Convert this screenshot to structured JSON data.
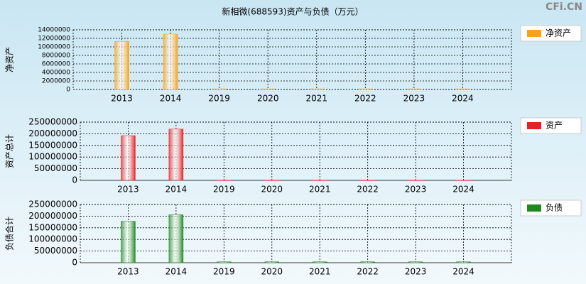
{
  "title": "新相微(688593)资产与负债（万元）",
  "watermark": "CFi.CN",
  "chart_data": [
    {
      "type": "bar",
      "ylabel": "净资产",
      "categories": [
        "2013",
        "2014",
        "2019",
        "2020",
        "2021",
        "2022",
        "2023",
        "2024"
      ],
      "series": [
        {
          "name": "净资产",
          "color": "#f5a31a",
          "values": [
            11300000,
            13000000,
            150000,
            150000,
            150000,
            150000,
            150000,
            150000
          ]
        }
      ],
      "ylim": [
        0,
        14000000
      ],
      "yticks": [
        0,
        2000000,
        4000000,
        6000000,
        8000000,
        10000000,
        12000000,
        14000000
      ],
      "grid": true,
      "legend": "right"
    },
    {
      "type": "bar",
      "ylabel": "资产总计",
      "categories": [
        "2013",
        "2014",
        "2019",
        "2020",
        "2021",
        "2022",
        "2023",
        "2024"
      ],
      "series": [
        {
          "name": "资产",
          "color": "#e82020",
          "values": [
            192000000,
            220000000,
            500000,
            500000,
            500000,
            500000,
            500000,
            500000
          ]
        }
      ],
      "ylim": [
        0,
        250000000
      ],
      "yticks": [
        0,
        50000000,
        100000000,
        150000000,
        200000000,
        250000000
      ],
      "grid": true,
      "legend": "right"
    },
    {
      "type": "bar",
      "ylabel": "负债合计",
      "categories": [
        "2013",
        "2014",
        "2019",
        "2020",
        "2021",
        "2022",
        "2023",
        "2024"
      ],
      "series": [
        {
          "name": "负债",
          "color": "#1e8a1e",
          "values": [
            178000000,
            206000000,
            4000000,
            4000000,
            4000000,
            4000000,
            4000000,
            4000000
          ]
        }
      ],
      "ylim": [
        0,
        250000000
      ],
      "yticks": [
        0,
        50000000,
        100000000,
        150000000,
        200000000,
        250000000
      ],
      "grid": true,
      "legend": "right"
    }
  ]
}
